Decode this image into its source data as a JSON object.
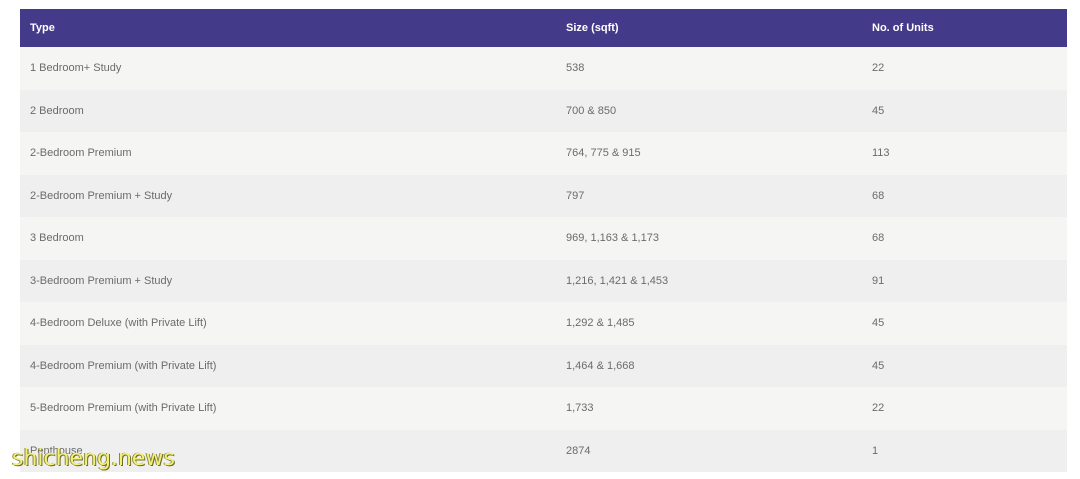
{
  "table": {
    "headers": [
      "Type",
      "Size (sqft)",
      "No. of Units"
    ],
    "rows": [
      [
        "1 Bedroom+ Study",
        "538",
        "22"
      ],
      [
        "2 Bedroom",
        "700 & 850",
        "45"
      ],
      [
        "2-Bedroom Premium",
        "764, 775 & 915",
        "113"
      ],
      [
        "2-Bedroom Premium + Study",
        "797",
        "68"
      ],
      [
        "3 Bedroom",
        "969, 1,163 & 1,173",
        "68"
      ],
      [
        "3-Bedroom Premium + Study",
        "1,216, 1,421 & 1,453",
        "91"
      ],
      [
        "4-Bedroom Deluxe (with Private Lift)",
        "1,292 & 1,485",
        "45"
      ],
      [
        "4-Bedroom Premium (with Private Lift)",
        "1,464 & 1,668",
        "45"
      ],
      [
        "5-Bedroom Premium (with Private Lift)",
        "1,733",
        "22"
      ],
      [
        "Penthouse",
        "2874",
        "1"
      ]
    ]
  },
  "watermark": "shicheng.news",
  "colors": {
    "header_bg": "#433a8a",
    "header_text": "#ffffff",
    "row_odd": "#f5f5f4",
    "row_even": "#efefef",
    "cell_text": "#6b6b6b",
    "watermark": "#f3f07a"
  }
}
